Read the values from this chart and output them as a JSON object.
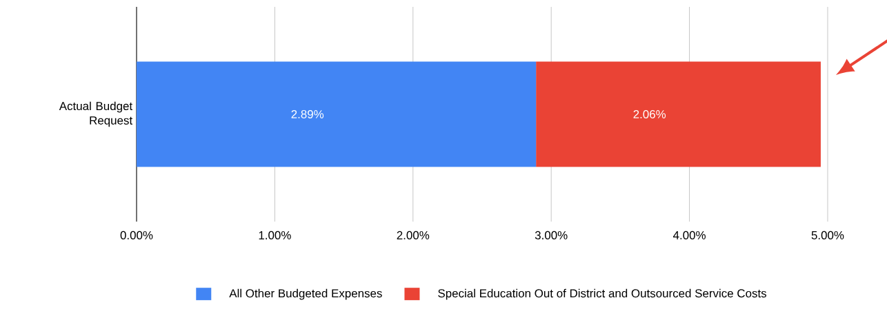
{
  "chart_data": {
    "type": "bar",
    "orientation": "horizontal",
    "stacked": true,
    "categories": [
      "Actual Budget Request"
    ],
    "series": [
      {
        "name": "All Other Budgeted Expenses",
        "color": "#4285f4",
        "values": [
          2.89
        ],
        "value_labels": [
          "2.89%"
        ]
      },
      {
        "name": "Special Education Out of District and Outsourced Service Costs",
        "color": "#ea4335",
        "values": [
          2.06
        ],
        "value_labels": [
          "2.06%"
        ]
      }
    ],
    "xlim": [
      0,
      5
    ],
    "xticks": [
      {
        "value": 0,
        "label": "0.00%"
      },
      {
        "value": 1,
        "label": "1.00%"
      },
      {
        "value": 2,
        "label": "2.00%"
      },
      {
        "value": 3,
        "label": "3.00%"
      },
      {
        "value": 4,
        "label": "4.00%"
      },
      {
        "value": 5,
        "label": "5.00%"
      }
    ],
    "grid": "x",
    "legend": "bottom"
  }
}
